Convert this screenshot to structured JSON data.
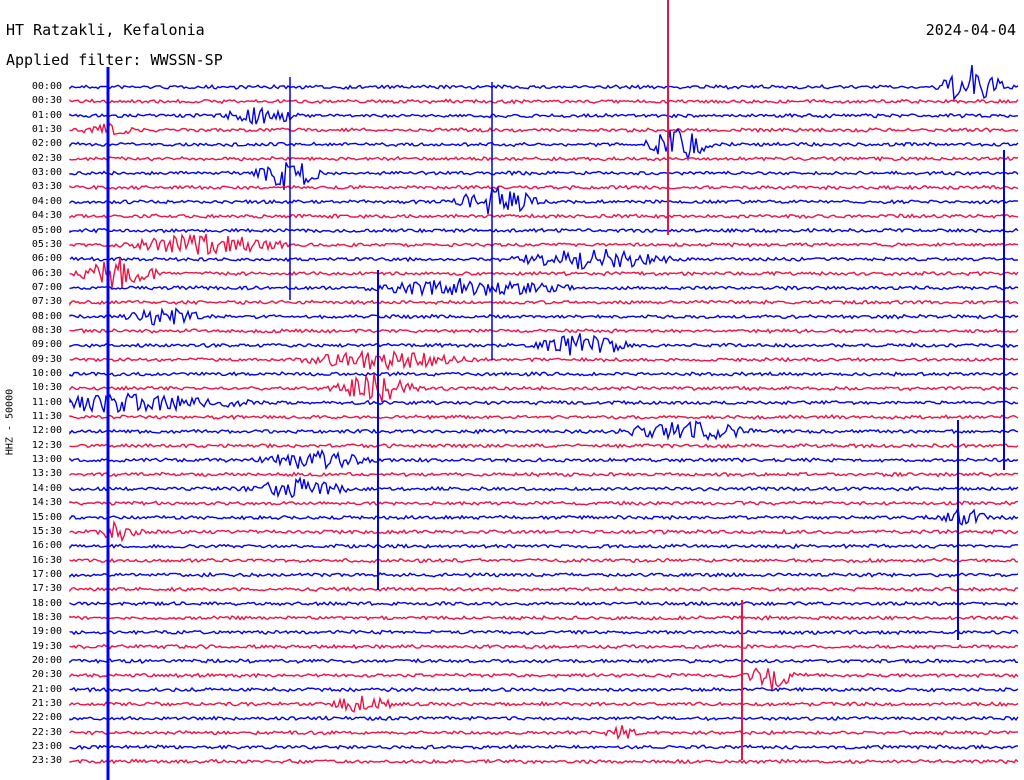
{
  "header": {
    "station": "HT Ratzakli, Kefalonia",
    "date": "2024-04-04",
    "filter": "Applied filter: WWSSN-SP"
  },
  "y_axis_label": "HHZ - 50000",
  "time_labels": [
    "00:00",
    "00:30",
    "01:00",
    "01:30",
    "02:00",
    "02:30",
    "03:00",
    "03:30",
    "04:00",
    "04:30",
    "05:00",
    "05:30",
    "06:00",
    "06:30",
    "07:00",
    "07:30",
    "08:00",
    "08:30",
    "09:00",
    "09:30",
    "10:00",
    "10:30",
    "11:00",
    "11:30",
    "12:00",
    "12:30",
    "13:00",
    "13:30",
    "14:00",
    "14:30",
    "15:00",
    "15:30",
    "16:00",
    "16:30",
    "17:00",
    "17:30",
    "18:00",
    "18:30",
    "19:00",
    "19:30",
    "20:00",
    "20:30",
    "21:00",
    "21:30",
    "22:00",
    "22:30",
    "23:00",
    "23:30"
  ],
  "colors": {
    "even": "#0000ee",
    "odd": "#ee1144"
  },
  "events": [
    {
      "row": 0,
      "pos": 0.95,
      "amp": 3,
      "len": 0.04
    },
    {
      "row": 2,
      "pos": 0.2,
      "amp": 1.2,
      "len": 0.05
    },
    {
      "row": 3,
      "pos": 0.04,
      "amp": 0.8,
      "len": 0.03
    },
    {
      "row": 4,
      "pos": 0.64,
      "amp": 2.5,
      "len": 0.04
    },
    {
      "row": 6,
      "pos": 0.23,
      "amp": 2.6,
      "len": 0.04
    },
    {
      "row": 8,
      "pos": 0.45,
      "amp": 2.4,
      "len": 0.05
    },
    {
      "row": 11,
      "pos": 0.14,
      "amp": 1.5,
      "len": 0.1
    },
    {
      "row": 12,
      "pos": 0.55,
      "amp": 1.4,
      "len": 0.1
    },
    {
      "row": 13,
      "pos": 0.05,
      "amp": 2.3,
      "len": 0.05
    },
    {
      "row": 14,
      "pos": 0.42,
      "amp": 1.3,
      "len": 0.12
    },
    {
      "row": 16,
      "pos": 0.1,
      "amp": 1.2,
      "len": 0.05
    },
    {
      "row": 18,
      "pos": 0.54,
      "amp": 1.7,
      "len": 0.06
    },
    {
      "row": 19,
      "pos": 0.33,
      "amp": 1.5,
      "len": 0.1
    },
    {
      "row": 21,
      "pos": 0.32,
      "amp": 2.2,
      "len": 0.05
    },
    {
      "row": 22,
      "pos": 0.05,
      "amp": 1.4,
      "len": 0.16
    },
    {
      "row": 24,
      "pos": 0.65,
      "amp": 1.5,
      "len": 0.08
    },
    {
      "row": 26,
      "pos": 0.26,
      "amp": 1.3,
      "len": 0.07
    },
    {
      "row": 28,
      "pos": 0.24,
      "amp": 1.4,
      "len": 0.06
    },
    {
      "row": 30,
      "pos": 0.94,
      "amp": 1.5,
      "len": 0.03
    },
    {
      "row": 31,
      "pos": 0.05,
      "amp": 1.3,
      "len": 0.03
    },
    {
      "row": 41,
      "pos": 0.74,
      "amp": 2.2,
      "len": 0.03
    },
    {
      "row": 43,
      "pos": 0.31,
      "amp": 1.2,
      "len": 0.04
    },
    {
      "row": 45,
      "pos": 0.58,
      "amp": 1.0,
      "len": 0.02
    }
  ]
}
